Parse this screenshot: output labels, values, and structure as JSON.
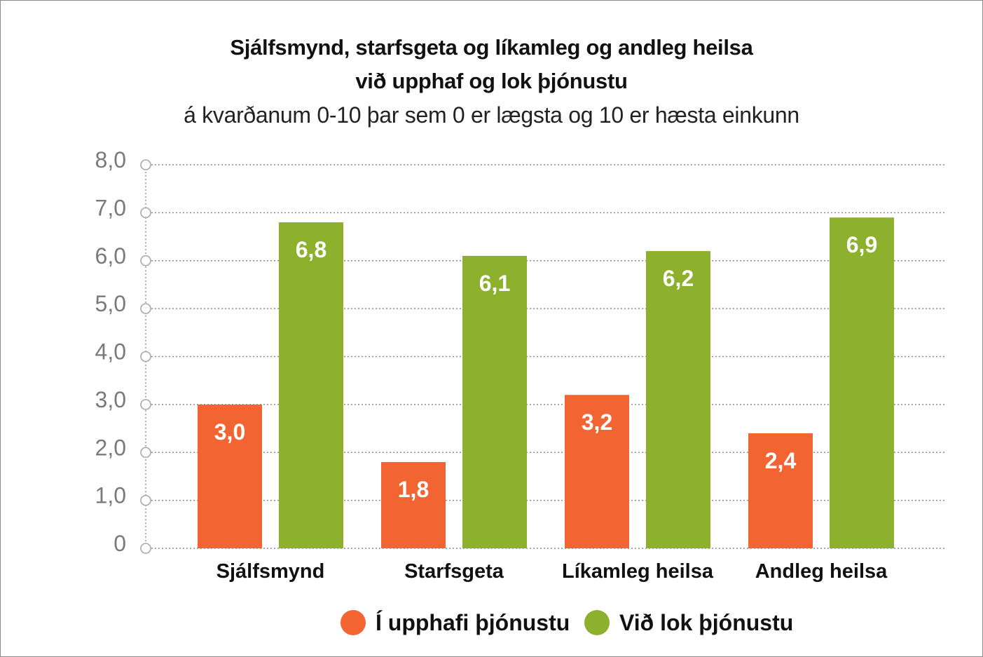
{
  "chart_data": {
    "type": "bar",
    "title": "Sjálfsmynd, starfsgeta og líkamleg og andleg heilsa",
    "title_line2": "við upphaf og lok þjónustu",
    "subtitle": "á kvarðanum 0-10 þar sem 0 er lægsta og 10 er hæsta einkunn",
    "categories": [
      "Sjálfsmynd",
      "Starfsgeta",
      "Líkamleg heilsa",
      "Andleg heilsa"
    ],
    "series": [
      {
        "name": "Í upphafi þjónustu",
        "color": "#f26532",
        "values": [
          3.0,
          1.8,
          3.2,
          2.4
        ],
        "labels": [
          "3,0",
          "1,8",
          "3,2",
          "2,4"
        ]
      },
      {
        "name": "Við lok þjónustu",
        "color": "#8db02d",
        "values": [
          6.8,
          6.1,
          6.2,
          6.9
        ],
        "labels": [
          "6,8",
          "6,1",
          "6,2",
          "6,9"
        ]
      }
    ],
    "ylim": [
      0,
      8
    ],
    "yticks": [
      0,
      1,
      2,
      3,
      4,
      5,
      6,
      7,
      8
    ],
    "ytick_labels": [
      "0",
      "1,0",
      "2,0",
      "3,0",
      "4,0",
      "5,0",
      "6,0",
      "7,0",
      "8,0"
    ],
    "grid": true,
    "legend_position": "bottom"
  }
}
